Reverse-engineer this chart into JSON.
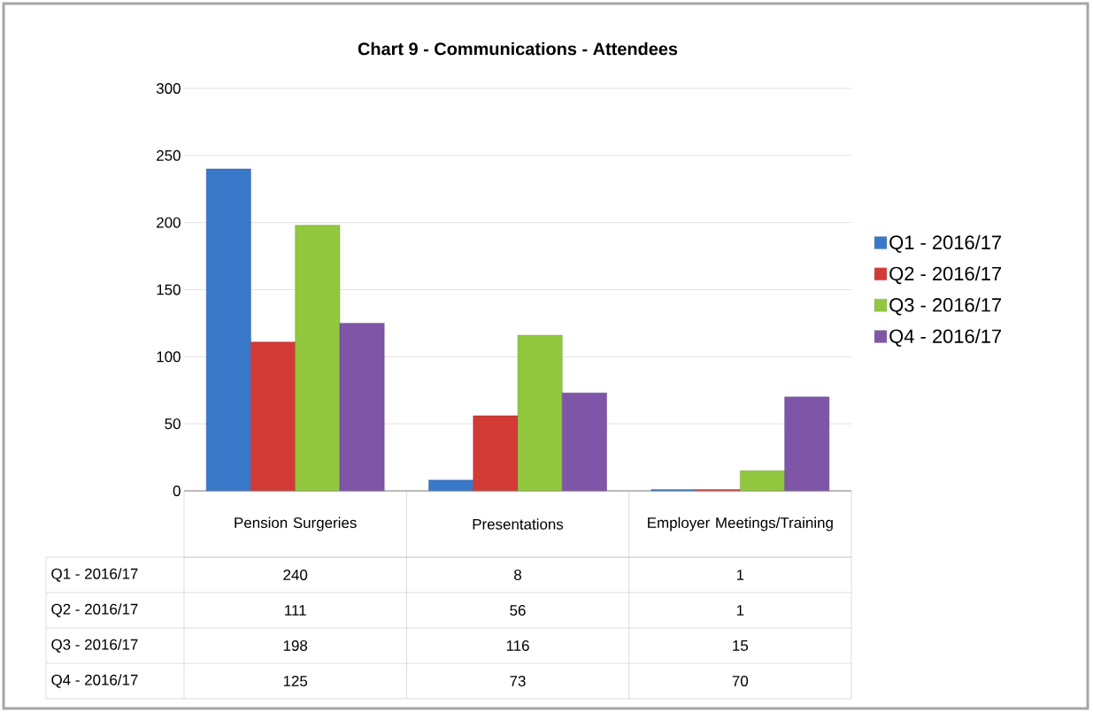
{
  "chart_data": {
    "type": "bar",
    "title": "Chart 9 - Communications  - Attendees",
    "categories": [
      "Pension Surgeries",
      "Presentations",
      "Employer Meetings/Training"
    ],
    "series": [
      {
        "name": "Q1 - 2016/17",
        "color": "#3a78c9",
        "values": [
          240,
          8,
          1
        ]
      },
      {
        "name": "Q2 - 2016/17",
        "color": "#d23a35",
        "values": [
          111,
          56,
          1
        ]
      },
      {
        "name": "Q3 - 2016/17",
        "color": "#92c83e",
        "values": [
          198,
          116,
          15
        ]
      },
      {
        "name": "Q4 - 2016/17",
        "color": "#7f55a8",
        "values": [
          125,
          73,
          70
        ]
      }
    ],
    "ylim": [
      0,
      300
    ],
    "yticks": [
      0,
      50,
      100,
      150,
      200,
      250,
      300
    ],
    "grid": "y",
    "legend": "right",
    "data_labels": true
  }
}
